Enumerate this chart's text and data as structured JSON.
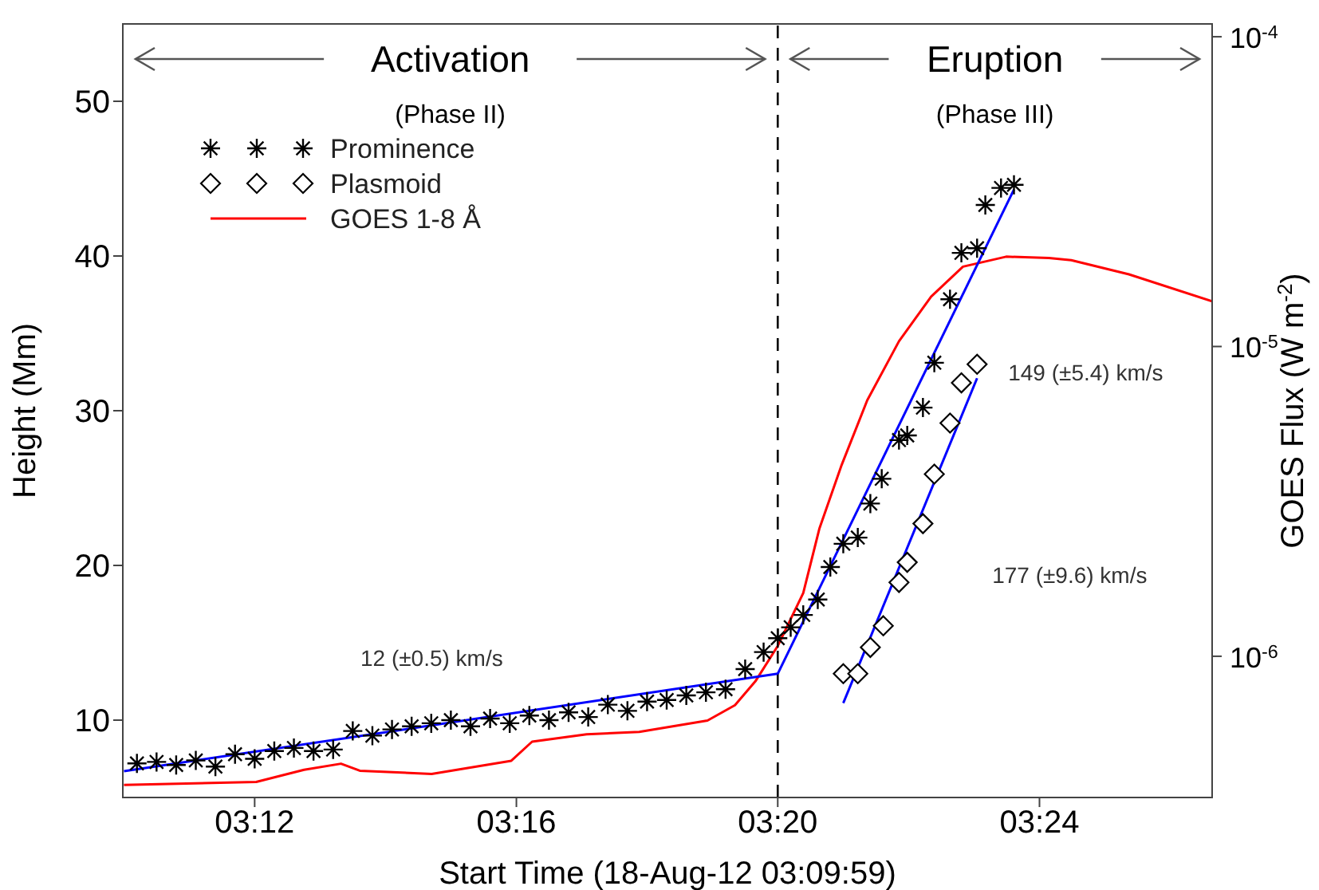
{
  "chart_data": {
    "type": "scatter",
    "xlabel": "Start Time (18-Aug-12 03:09:59)",
    "ylabel": "Height (Mm)",
    "y2label": "GOES Flux (W m$^{-2}$)",
    "xlim": [
      3.1664,
      3.444
    ],
    "xticks": [
      {
        "value": 3.2,
        "label": "03:12"
      },
      {
        "value": 3.2667,
        "label": "03:16"
      },
      {
        "value": 3.3333,
        "label": "03:20"
      },
      {
        "value": 3.4,
        "label": "03:24"
      }
    ],
    "ylim": [
      5,
      55
    ],
    "yticks": [
      10,
      20,
      30,
      40,
      50
    ],
    "y2lim": [
      3.5e-07,
      0.00011
    ],
    "y2ticks": [
      {
        "value": 1e-06,
        "label": "10$^{-6}$"
      },
      {
        "value": 1e-05,
        "label": "10$^{-5}$"
      },
      {
        "value": 0.0001,
        "label": "10$^{-4}$"
      }
    ],
    "log": "y2",
    "legend": "top left",
    "series": [
      {
        "name": "Prominence",
        "color": "#000000",
        "marker": "cross",
        "x": [
          3.17,
          3.175,
          3.18,
          3.185,
          3.19,
          3.195,
          3.2,
          3.205,
          3.21,
          3.215,
          3.22,
          3.225,
          3.23,
          3.235,
          3.24,
          3.245,
          3.25,
          3.255,
          3.26,
          3.265,
          3.27,
          3.275,
          3.28,
          3.285,
          3.29,
          3.295,
          3.3,
          3.305,
          3.31,
          3.315,
          3.32,
          3.325,
          3.3297,
          3.3333,
          3.3366,
          3.3398,
          3.3435,
          3.3467,
          3.35,
          3.3537,
          3.3569,
          3.3598,
          3.3642,
          3.3663,
          3.3703,
          3.3732,
          3.3772,
          3.3801,
          3.3841,
          3.3862,
          3.3902,
          3.3935
        ],
        "values": [
          7.2,
          7.3,
          7.1,
          7.4,
          7.0,
          7.8,
          7.5,
          8.0,
          8.2,
          8.0,
          8.1,
          9.3,
          9.0,
          9.4,
          9.6,
          9.8,
          10.0,
          9.6,
          10.1,
          9.8,
          10.3,
          10.0,
          10.5,
          10.2,
          11.0,
          10.6,
          11.2,
          11.3,
          11.6,
          11.8,
          12.0,
          13.3,
          14.4,
          15.3,
          16.0,
          16.8,
          17.8,
          19.9,
          21.4,
          21.8,
          24.0,
          25.6,
          28.1,
          28.4,
          30.2,
          33.1,
          37.2,
          40.2,
          40.5,
          43.3,
          44.4,
          44.6
        ]
      },
      {
        "name": "Plasmoid",
        "color": "#000000",
        "marker": "diamond",
        "x": [
          3.35,
          3.3537,
          3.3569,
          3.3602,
          3.3642,
          3.3663,
          3.3703,
          3.3732,
          3.3772,
          3.3801,
          3.3841
        ],
        "values": [
          13.0,
          13.0,
          14.7,
          16.1,
          18.9,
          20.2,
          22.7,
          25.9,
          29.2,
          31.8,
          33.0
        ]
      },
      {
        "type": "line",
        "name": "GOES 1-8 Å",
        "color": "#ff0000",
        "axis": "y2",
        "x": [
          3.1667,
          3.2004,
          3.2126,
          3.222,
          3.2268,
          3.2451,
          3.2654,
          3.2707,
          3.2846,
          3.298,
          3.3154,
          3.3224,
          3.3276,
          3.3333,
          3.3398,
          3.3439,
          3.3496,
          3.3561,
          3.3642,
          3.3724,
          3.3805,
          3.3915,
          3.4024,
          3.4081,
          3.4228,
          3.444
        ],
        "values": [
          3.84e-07,
          3.93e-07,
          4.3e-07,
          4.5e-07,
          4.27e-07,
          4.17e-07,
          4.6e-07,
          5.3e-07,
          5.6e-07,
          5.7e-07,
          6.2e-07,
          6.95e-07,
          8.3e-07,
          1.08e-06,
          1.6e-06,
          2.58e-06,
          4.15e-06,
          6.7e-06,
          1.04e-05,
          1.45e-05,
          1.81e-05,
          1.95e-05,
          1.93e-05,
          1.9e-05,
          1.71e-05,
          1.4e-05
        ]
      },
      {
        "type": "line",
        "color": "#0000ff",
        "x": [
          3.1667,
          3.3333
        ],
        "values": [
          6.7,
          13.0
        ]
      },
      {
        "type": "line",
        "color": "#0000ff",
        "x": [
          3.3333,
          3.3935
        ],
        "values": [
          13.0,
          44.3
        ]
      },
      {
        "type": "line",
        "color": "#0000ff",
        "x": [
          3.35,
          3.3841
        ],
        "values": [
          11.1,
          32.1
        ]
      }
    ],
    "ref_lines": [
      {
        "axis": "x",
        "value": 3.3333,
        "color": "#000000",
        "line_style": "dashed"
      }
    ],
    "annotations": [
      "Activation",
      "(Phase II)",
      "Eruption",
      "(Phase III)",
      "12 (±0.5) km/s",
      "149 (±5.4) km/s",
      "177 (±9.6) km/s"
    ]
  }
}
